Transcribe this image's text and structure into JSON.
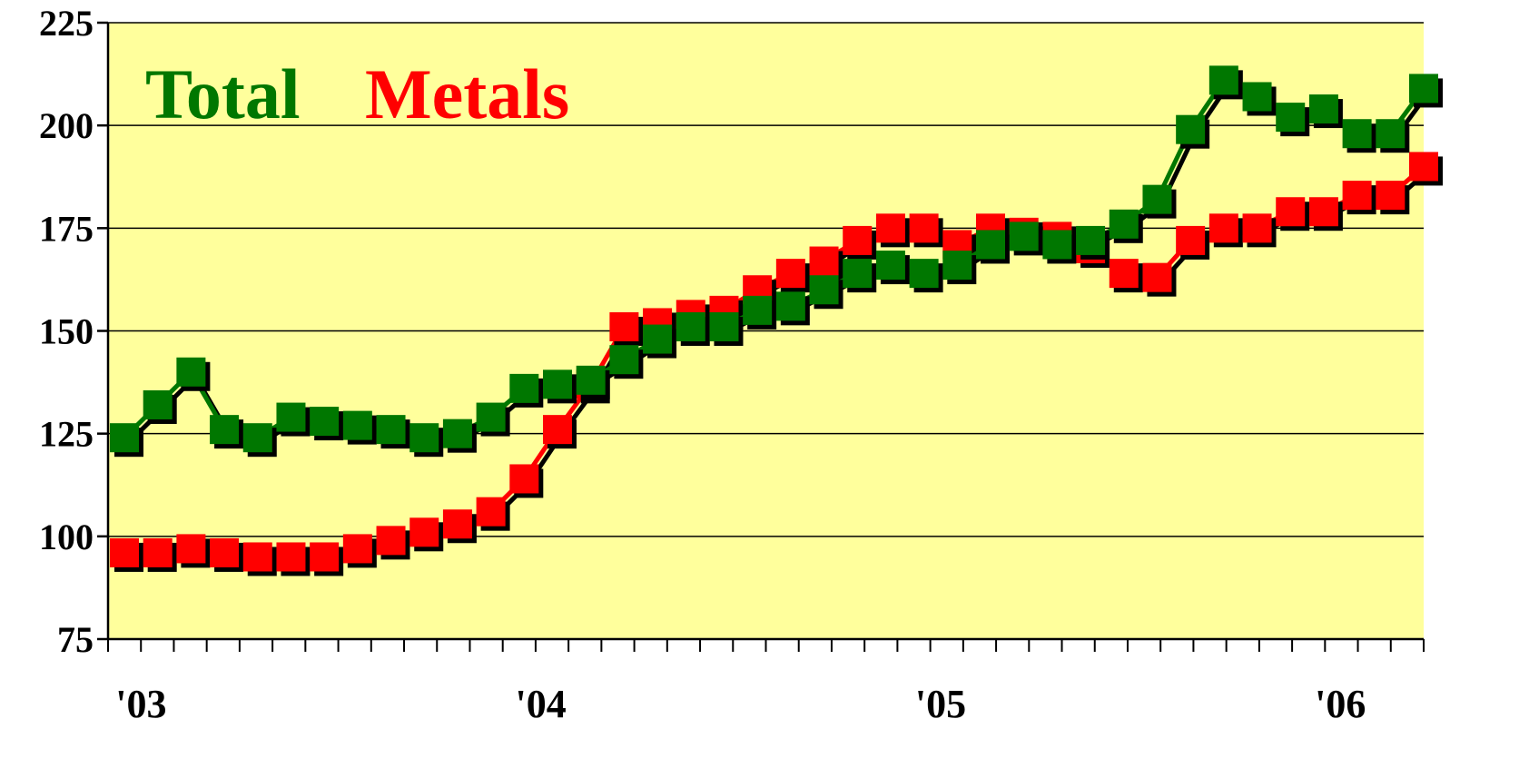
{
  "chart_data": {
    "type": "line",
    "ylim": [
      75,
      225
    ],
    "yticks": [
      75,
      100,
      125,
      150,
      175,
      200,
      225
    ],
    "xlim": [
      0,
      39
    ],
    "x_tick_labels": [
      {
        "label": "'03",
        "x": 0.5
      },
      {
        "label": "'04",
        "x": 12.5
      },
      {
        "label": "'05",
        "x": 24.5
      },
      {
        "label": "'06",
        "x": 36.5
      }
    ],
    "grid": true,
    "colors": {
      "background": "#FFFF9C",
      "total": "#007700",
      "metals": "#FF0000",
      "shadow": "#000000"
    },
    "series": [
      {
        "name": "Total",
        "color": "#007700",
        "values": [
          124,
          132,
          140,
          126,
          124,
          129,
          128,
          127,
          126,
          124,
          125,
          129,
          136,
          137,
          138,
          143,
          148,
          151,
          151,
          155,
          156,
          160,
          164,
          166,
          164,
          166,
          171,
          173,
          171,
          172,
          176,
          182,
          199,
          211,
          207,
          202,
          204,
          198,
          198,
          209
        ]
      },
      {
        "name": "Metals",
        "color": "#FF0000",
        "values": [
          96,
          96,
          97,
          96,
          95,
          95,
          95,
          97,
          99,
          101,
          103,
          106,
          114,
          126,
          137,
          151,
          152,
          154,
          155,
          160,
          164,
          167,
          172,
          175,
          175,
          171,
          175,
          174,
          173,
          170,
          164,
          163,
          172,
          175,
          175,
          179,
          179,
          183,
          183,
          190
        ]
      }
    ]
  }
}
